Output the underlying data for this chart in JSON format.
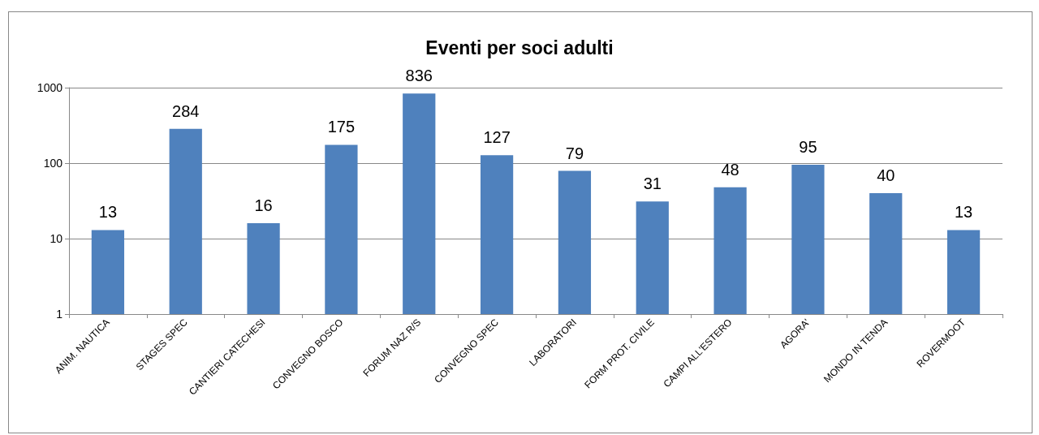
{
  "chart_data": {
    "type": "bar",
    "title": "Eventi per soci adulti",
    "categories": [
      "ANIM. NAUTICA",
      "STAGES SPEC",
      "CANTIERI CATECHESI",
      "CONVEGNO BOSCO",
      "FORUM NAZ R/S",
      "CONVEGNO SPEC",
      "LABORATORI",
      "FORM PROT. CIVILE",
      "CAMPI ALL'ESTERO",
      "AGORA'",
      "MONDO IN TENDA",
      "ROVERMOOT"
    ],
    "values": [
      13,
      284,
      16,
      175,
      836,
      127,
      79,
      31,
      48,
      95,
      40,
      13
    ],
    "color": "#4f81bd",
    "log": true,
    "ylim": [
      1,
      1000
    ],
    "yticks": [
      1,
      10,
      100,
      1000
    ],
    "grid": "y",
    "data_labels": true
  }
}
